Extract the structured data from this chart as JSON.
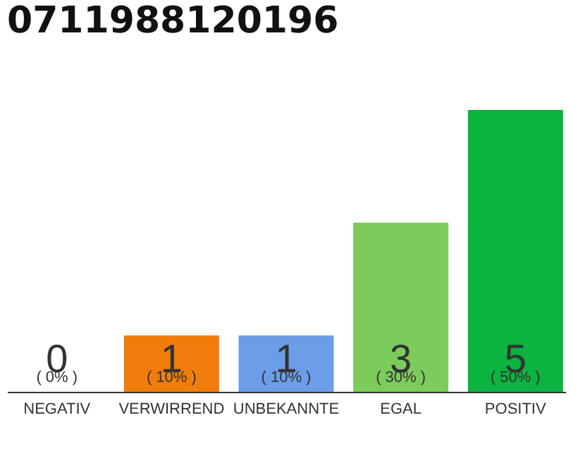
{
  "chart_data": {
    "type": "bar",
    "title": "0711988120196",
    "categories": [
      "NEGATIV",
      "VERWIRREND",
      "UNBEKANNTE",
      "EGAL",
      "POSITIV"
    ],
    "values": [
      0,
      1,
      1,
      3,
      5
    ],
    "colors": [
      "#0bb440",
      "#f07d0a",
      "#6b9de8",
      "#7ccc5c",
      "#0bb440"
    ],
    "data_labels": true,
    "annotations": [
      "( 0% )",
      "( 10% )",
      "( 10% )",
      "( 30% )",
      "( 50% )"
    ]
  }
}
